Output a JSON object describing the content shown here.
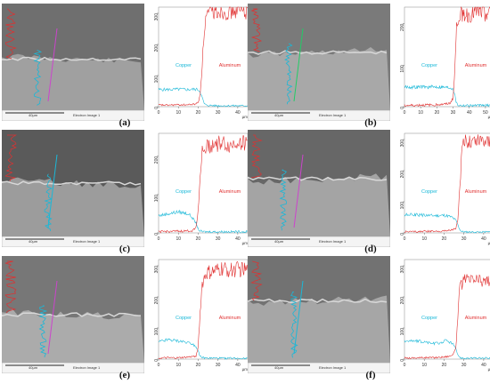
{
  "figure": {
    "colors": {
      "copper": "#1ab8d8",
      "aluminum": "#e03030",
      "line_scan_magenta": "#cc44cc",
      "line_scan_green": "#22cc66"
    },
    "panels": [
      {
        "label": "(a)",
        "scale_text": "40µm",
        "image_title": "Electron Image 1",
        "sem": {
          "interface_y": 0.52,
          "top_tone": "#6f6f6f",
          "bottom_tone": "#a0a0a0",
          "scan_line_color": "#cc44cc"
        },
        "chart_data": {
          "type": "line",
          "xlim": [
            0,
            45
          ],
          "ylim": [
            0,
            320
          ],
          "xticks": [
            0,
            10,
            20,
            30,
            40
          ],
          "yticks": [
            0,
            100,
            200,
            300
          ],
          "xunit": "µm",
          "series": [
            {
              "name": "Copper",
              "x": [
                0,
                5,
                10,
                15,
                18,
                20,
                21,
                22,
                23,
                24,
                26,
                30,
                35,
                40,
                45
              ],
              "y": [
                55,
                55,
                56,
                55,
                56,
                55,
                48,
                30,
                10,
                5,
                4,
                3,
                3,
                3,
                3
              ]
            },
            {
              "name": "Aluminum",
              "x": [
                0,
                5,
                10,
                15,
                18,
                20,
                21,
                22,
                23,
                24,
                26,
                30,
                35,
                40,
                45
              ],
              "y": [
                5,
                5,
                6,
                6,
                8,
                12,
                40,
                130,
                240,
                290,
                300,
                310,
                305,
                310,
                308
              ]
            }
          ]
        }
      },
      {
        "label": "(b)",
        "scale_text": "40µm",
        "image_title": "Electron Image 1",
        "sem": {
          "interface_y": 0.46,
          "top_tone": "#7a7a7a",
          "bottom_tone": "#a8a8a8",
          "scan_line_color": "#22cc66"
        },
        "chart_data": {
          "type": "line",
          "xlim": [
            0,
            55
          ],
          "ylim": [
            0,
            240
          ],
          "xticks": [
            0,
            10,
            20,
            30,
            40,
            50
          ],
          "yticks": [
            0,
            100,
            200
          ],
          "xunit": "µm",
          "series": [
            {
              "name": "Copper",
              "x": [
                0,
                5,
                10,
                15,
                20,
                25,
                28,
                30,
                31,
                32,
                33,
                35,
                40,
                45,
                50,
                55
              ],
              "y": [
                48,
                47,
                48,
                47,
                48,
                47,
                46,
                44,
                30,
                10,
                4,
                3,
                3,
                3,
                3,
                3
              ]
            },
            {
              "name": "Aluminum",
              "x": [
                0,
                5,
                10,
                15,
                20,
                25,
                28,
                30,
                31,
                32,
                33,
                35,
                40,
                45,
                50,
                55
              ],
              "y": [
                3,
                3,
                4,
                4,
                5,
                6,
                8,
                20,
                80,
                180,
                215,
                225,
                220,
                230,
                225,
                228
              ]
            }
          ]
        }
      },
      {
        "label": "(c)",
        "scale_text": "40µm",
        "image_title": "Electron Image 1",
        "sem": {
          "interface_y": 0.5,
          "top_tone": "#5a5a5a",
          "bottom_tone": "#9c9c9c",
          "scan_line_color": "#1ab8d8"
        },
        "chart_data": {
          "type": "line",
          "xlim": [
            0,
            45
          ],
          "ylim": [
            0,
            260
          ],
          "xticks": [
            0,
            10,
            20,
            30,
            40
          ],
          "yticks": [
            0,
            100,
            200
          ],
          "xunit": "µm",
          "series": [
            {
              "name": "Copper",
              "x": [
                0,
                5,
                10,
                15,
                17,
                19,
                20,
                21,
                22,
                24,
                28,
                32,
                36,
                40,
                45
              ],
              "y": [
                45,
                50,
                55,
                50,
                40,
                25,
                10,
                5,
                3,
                3,
                3,
                3,
                3,
                3,
                3
              ]
            },
            {
              "name": "Aluminum",
              "x": [
                0,
                5,
                10,
                15,
                17,
                19,
                20,
                21,
                22,
                24,
                28,
                32,
                36,
                40,
                45
              ],
              "y": [
                3,
                4,
                4,
                5,
                6,
                15,
                60,
                150,
                210,
                225,
                230,
                235,
                225,
                240,
                232
              ]
            }
          ]
        }
      },
      {
        "label": "(d)",
        "scale_text": "40µm",
        "image_title": "Electron Image 1",
        "sem": {
          "interface_y": 0.46,
          "top_tone": "#676767",
          "bottom_tone": "#a4a4a4",
          "scan_line_color": "#cc44cc"
        },
        "chart_data": {
          "type": "line",
          "xlim": [
            0,
            45
          ],
          "ylim": [
            0,
            320
          ],
          "xticks": [
            0,
            10,
            20,
            30,
            40
          ],
          "yticks": [
            0,
            100,
            200,
            300
          ],
          "xunit": "µm",
          "series": [
            {
              "name": "Copper",
              "x": [
                0,
                5,
                10,
                15,
                20,
                22,
                24,
                26,
                27,
                28,
                29,
                31,
                35,
                40,
                45
              ],
              "y": [
                58,
                58,
                57,
                55,
                56,
                54,
                50,
                40,
                25,
                10,
                4,
                3,
                3,
                3,
                3
              ]
            },
            {
              "name": "Aluminum",
              "x": [
                0,
                5,
                10,
                15,
                20,
                22,
                24,
                26,
                27,
                28,
                29,
                31,
                35,
                40,
                45
              ],
              "y": [
                4,
                4,
                5,
                5,
                6,
                8,
                10,
                15,
                40,
                150,
                270,
                295,
                300,
                305,
                300
              ]
            }
          ]
        }
      },
      {
        "label": "(e)",
        "scale_text": "40µm",
        "image_title": "Electron Image 1",
        "sem": {
          "interface_y": 0.55,
          "top_tone": "#777777",
          "bottom_tone": "#ababab",
          "scan_line_color": "#cc44cc"
        },
        "chart_data": {
          "type": "line",
          "xlim": [
            0,
            45
          ],
          "ylim": [
            0,
            320
          ],
          "xticks": [
            0,
            10,
            20,
            30,
            40
          ],
          "yticks": [
            0,
            100,
            200,
            300
          ],
          "xunit": "µm",
          "series": [
            {
              "name": "Copper",
              "x": [
                0,
                5,
                10,
                14,
                17,
                19,
                20,
                21,
                22,
                24,
                28,
                32,
                36,
                40,
                45
              ],
              "y": [
                55,
                62,
                58,
                55,
                50,
                40,
                25,
                10,
                5,
                3,
                3,
                3,
                3,
                3,
                3
              ]
            },
            {
              "name": "Aluminum",
              "x": [
                0,
                5,
                10,
                14,
                17,
                19,
                20,
                21,
                22,
                24,
                28,
                32,
                36,
                40,
                45
              ],
              "y": [
                3,
                4,
                4,
                6,
                8,
                10,
                40,
                150,
                240,
                275,
                280,
                290,
                285,
                290,
                285
              ]
            }
          ]
        }
      },
      {
        "label": "(f)",
        "scale_text": "40µm",
        "image_title": "Electron Image 1",
        "sem": {
          "interface_y": 0.42,
          "top_tone": "#727272",
          "bottom_tone": "#a6a6a6",
          "scan_line_color": "#1ab8d8"
        },
        "chart_data": {
          "type": "line",
          "xlim": [
            0,
            45
          ],
          "ylim": [
            0,
            320
          ],
          "xticks": [
            0,
            10,
            20,
            30,
            40
          ],
          "yticks": [
            0,
            100,
            200,
            300
          ],
          "xunit": "µm",
          "series": [
            {
              "name": "Copper",
              "x": [
                0,
                5,
                10,
                15,
                18,
                21,
                23,
                25,
                26,
                27,
                28,
                30,
                35,
                40,
                45
              ],
              "y": [
                60,
                58,
                55,
                50,
                52,
                60,
                55,
                45,
                30,
                15,
                5,
                3,
                3,
                3,
                3
              ]
            },
            {
              "name": "Aluminum",
              "x": [
                0,
                5,
                10,
                15,
                18,
                21,
                23,
                25,
                26,
                27,
                28,
                30,
                35,
                40,
                45
              ],
              "y": [
                4,
                4,
                5,
                5,
                6,
                8,
                10,
                18,
                40,
                140,
                230,
                250,
                255,
                250,
                258
              ]
            }
          ]
        }
      }
    ]
  }
}
